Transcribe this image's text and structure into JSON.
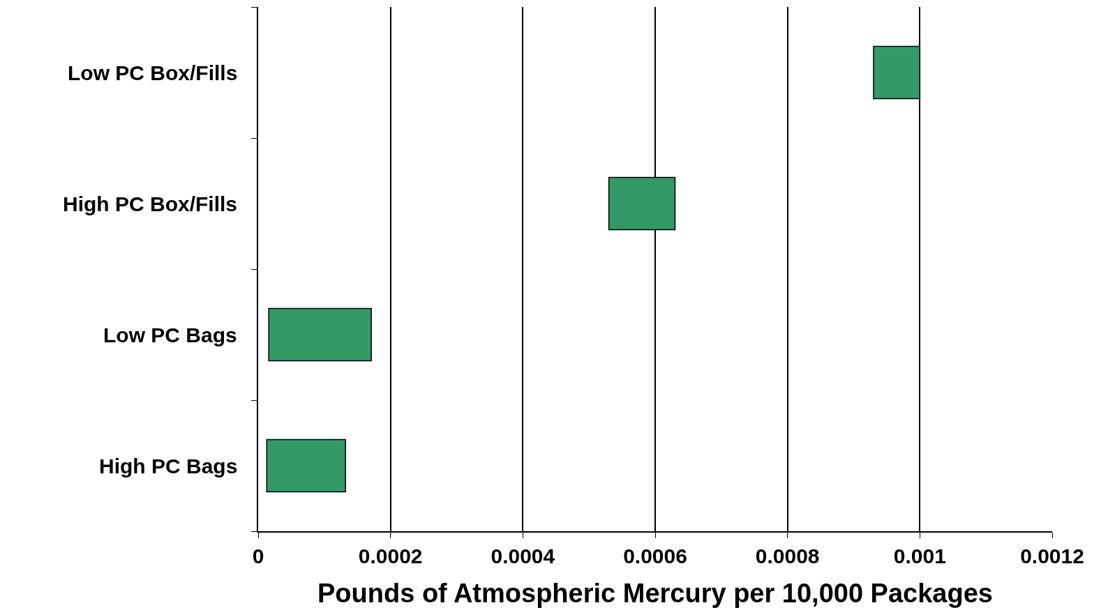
{
  "chart_data": {
    "type": "bar",
    "orientation": "horizontal",
    "xlabel": "Pounds of Atmospheric Mercury per 10,000 Packages",
    "categories": [
      "Low PC Box/Fills",
      "High PC Box/Fills",
      "Low PC Bags",
      "High PC Bags"
    ],
    "base": [
      0.00093,
      0.00053,
      1.6e-05,
      1.3e-05
    ],
    "values": [
      7e-05,
      0.0001,
      0.000155,
      0.000119
    ],
    "color": "#339966",
    "xlim": [
      0,
      0.0012
    ],
    "xticks": [
      0,
      0.0002,
      0.0004,
      0.0006,
      0.0008,
      0.001,
      0.0012
    ],
    "grid": "x"
  }
}
